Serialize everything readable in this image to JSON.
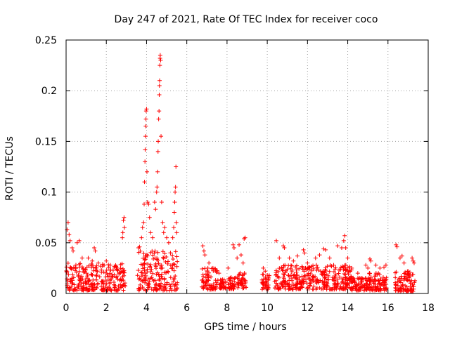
{
  "chart_data": {
    "type": "scatter",
    "title": "Day 247 of 2021, Rate Of TEC Index for receiver coco",
    "xlabel": "GPS time / hours",
    "ylabel": "ROTI / TECUs",
    "xlim": [
      0,
      18
    ],
    "ylim": [
      0,
      0.25
    ],
    "xticks": [
      0,
      2,
      4,
      6,
      8,
      10,
      12,
      14,
      16,
      18
    ],
    "xtick_labels": [
      "0",
      "2",
      "4",
      "6",
      "8",
      "10",
      "12",
      "14",
      "16",
      "18"
    ],
    "yticks": [
      0,
      0.05,
      0.1,
      0.15,
      0.2,
      0.25
    ],
    "ytick_labels": [
      "0",
      "0.05",
      "0.1",
      "0.15",
      "0.2",
      "0.25"
    ],
    "grid": true,
    "marker": "+",
    "color": "#ff0000",
    "series": [
      {
        "name": "ROTI",
        "points": [
          [
            0.05,
            0.063
          ],
          [
            0.1,
            0.07
          ],
          [
            0.15,
            0.058
          ],
          [
            0.2,
            0.052
          ],
          [
            0.3,
            0.045
          ],
          [
            0.35,
            0.042
          ],
          [
            0.55,
            0.05
          ],
          [
            0.65,
            0.052
          ],
          [
            0.8,
            0.035
          ],
          [
            1.1,
            0.035
          ],
          [
            1.3,
            0.032
          ],
          [
            1.4,
            0.045
          ],
          [
            1.45,
            0.042
          ],
          [
            1.6,
            0.03
          ],
          [
            2.0,
            0.032
          ],
          [
            2.2,
            0.028
          ],
          [
            2.5,
            0.026
          ],
          [
            2.8,
            0.055
          ],
          [
            2.82,
            0.06
          ],
          [
            2.85,
            0.072
          ],
          [
            2.88,
            0.075
          ],
          [
            2.9,
            0.065
          ],
          [
            3.6,
            0.045
          ],
          [
            3.65,
            0.046
          ],
          [
            3.75,
            0.055
          ],
          [
            3.8,
            0.065
          ],
          [
            3.85,
            0.07
          ],
          [
            3.88,
            0.088
          ],
          [
            3.9,
            0.11
          ],
          [
            3.92,
            0.13
          ],
          [
            3.93,
            0.142
          ],
          [
            3.95,
            0.155
          ],
          [
            3.96,
            0.165
          ],
          [
            3.97,
            0.172
          ],
          [
            3.98,
            0.18
          ],
          [
            4.0,
            0.182
          ],
          [
            4.02,
            0.12
          ],
          [
            4.05,
            0.09
          ],
          [
            4.1,
            0.088
          ],
          [
            4.15,
            0.075
          ],
          [
            4.2,
            0.06
          ],
          [
            4.3,
            0.055
          ],
          [
            4.4,
            0.09
          ],
          [
            4.45,
            0.083
          ],
          [
            4.5,
            0.1
          ],
          [
            4.52,
            0.105
          ],
          [
            4.55,
            0.12
          ],
          [
            4.57,
            0.14
          ],
          [
            4.58,
            0.15
          ],
          [
            4.6,
            0.172
          ],
          [
            4.62,
            0.18
          ],
          [
            4.63,
            0.196
          ],
          [
            4.64,
            0.205
          ],
          [
            4.65,
            0.21
          ],
          [
            4.66,
            0.225
          ],
          [
            4.67,
            0.232
          ],
          [
            4.68,
            0.235
          ],
          [
            4.7,
            0.23
          ],
          [
            4.72,
            0.155
          ],
          [
            4.75,
            0.09
          ],
          [
            4.8,
            0.07
          ],
          [
            4.85,
            0.06
          ],
          [
            4.9,
            0.065
          ],
          [
            5.0,
            0.055
          ],
          [
            5.1,
            0.05
          ],
          [
            5.3,
            0.055
          ],
          [
            5.35,
            0.065
          ],
          [
            5.38,
            0.08
          ],
          [
            5.4,
            0.09
          ],
          [
            5.42,
            0.1
          ],
          [
            5.44,
            0.105
          ],
          [
            5.46,
            0.125
          ],
          [
            5.48,
            0.07
          ],
          [
            5.5,
            0.06
          ],
          [
            6.8,
            0.047
          ],
          [
            6.85,
            0.042
          ],
          [
            6.9,
            0.038
          ],
          [
            7.1,
            0.03
          ],
          [
            7.3,
            0.025
          ],
          [
            7.6,
            0.02
          ],
          [
            8.05,
            0.025
          ],
          [
            8.3,
            0.048
          ],
          [
            8.35,
            0.045
          ],
          [
            8.5,
            0.035
          ],
          [
            8.6,
            0.048
          ],
          [
            8.7,
            0.038
          ],
          [
            8.8,
            0.03
          ],
          [
            8.85,
            0.054
          ],
          [
            8.9,
            0.055
          ],
          [
            9.8,
            0.025
          ],
          [
            9.9,
            0.022
          ],
          [
            10.0,
            0.018
          ],
          [
            10.45,
            0.052
          ],
          [
            10.6,
            0.035
          ],
          [
            10.8,
            0.047
          ],
          [
            10.85,
            0.045
          ],
          [
            11.1,
            0.035
          ],
          [
            11.3,
            0.032
          ],
          [
            11.5,
            0.037
          ],
          [
            11.8,
            0.043
          ],
          [
            11.85,
            0.04
          ],
          [
            12.0,
            0.03
          ],
          [
            12.4,
            0.035
          ],
          [
            12.6,
            0.038
          ],
          [
            12.8,
            0.044
          ],
          [
            12.9,
            0.043
          ],
          [
            13.1,
            0.035
          ],
          [
            13.3,
            0.028
          ],
          [
            13.5,
            0.047
          ],
          [
            13.7,
            0.045
          ],
          [
            13.8,
            0.052
          ],
          [
            13.85,
            0.057
          ],
          [
            13.9,
            0.045
          ],
          [
            14.0,
            0.035
          ],
          [
            14.2,
            0.025
          ],
          [
            14.5,
            0.02
          ],
          [
            14.9,
            0.028
          ],
          [
            15.0,
            0.025
          ],
          [
            15.1,
            0.034
          ],
          [
            15.15,
            0.032
          ],
          [
            15.4,
            0.028
          ],
          [
            15.6,
            0.025
          ],
          [
            15.8,
            0.026
          ],
          [
            15.9,
            0.028
          ],
          [
            16.4,
            0.048
          ],
          [
            16.45,
            0.046
          ],
          [
            16.6,
            0.035
          ],
          [
            16.7,
            0.037
          ],
          [
            16.8,
            0.03
          ],
          [
            17.0,
            0.022
          ],
          [
            17.2,
            0.035
          ],
          [
            17.25,
            0.032
          ],
          [
            17.3,
            0.03
          ]
        ]
      }
    ],
    "dense_bands": [
      {
        "x_range": [
          0.0,
          2.95
        ],
        "y_range": [
          0.003,
          0.03
        ]
      },
      {
        "x_range": [
          3.55,
          5.55
        ],
        "y_range": [
          0.003,
          0.042
        ]
      },
      {
        "x_range": [
          6.75,
          7.55
        ],
        "y_range": [
          0.004,
          0.026
        ]
      },
      {
        "x_range": [
          7.6,
          7.95
        ],
        "y_range": [
          0.005,
          0.014
        ]
      },
      {
        "x_range": [
          8.05,
          8.45
        ],
        "y_range": [
          0.004,
          0.016
        ]
      },
      {
        "x_range": [
          8.5,
          8.95
        ],
        "y_range": [
          0.005,
          0.022
        ]
      },
      {
        "x_range": [
          9.7,
          10.1
        ],
        "y_range": [
          0.004,
          0.02
        ]
      },
      {
        "x_range": [
          10.35,
          14.2
        ],
        "y_range": [
          0.004,
          0.028
        ]
      },
      {
        "x_range": [
          14.2,
          15.05
        ],
        "y_range": [
          0.003,
          0.016
        ]
      },
      {
        "x_range": [
          15.05,
          15.95
        ],
        "y_range": [
          0.003,
          0.02
        ]
      },
      {
        "x_range": [
          16.35,
          17.35
        ],
        "y_range": [
          0.002,
          0.022
        ]
      }
    ]
  }
}
